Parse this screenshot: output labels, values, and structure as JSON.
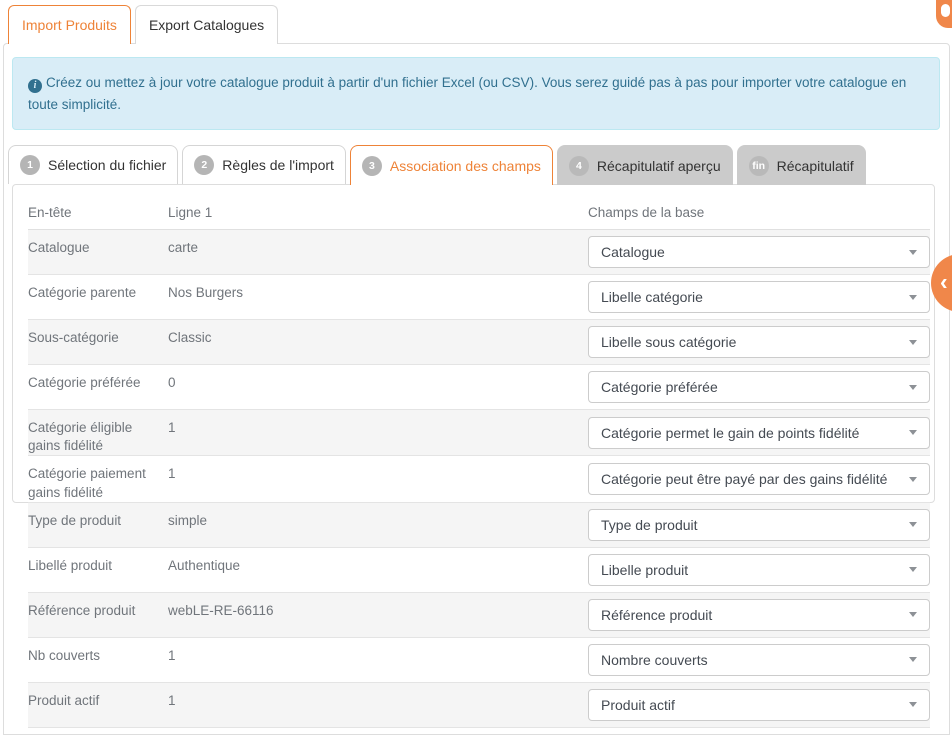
{
  "accent_color": "#ee8338",
  "top_tabs": [
    {
      "label": "Import Produits",
      "active": true
    },
    {
      "label": "Export Catalogues",
      "active": false
    }
  ],
  "alert": {
    "icon": "info-icon",
    "text": "Créez ou mettez à jour votre catalogue produit à partir d'un fichier Excel (ou CSV). Vous serez guidé pas à pas pour importer votre catalogue en toute simplicité."
  },
  "wizard_steps": [
    {
      "badge": "1",
      "label": "Sélection du fichier",
      "state": "default"
    },
    {
      "badge": "2",
      "label": "Règles de l'import",
      "state": "default"
    },
    {
      "badge": "3",
      "label": "Association des champs",
      "state": "active"
    },
    {
      "badge": "4",
      "label": "Récapitulatif aperçu",
      "state": "disabled"
    },
    {
      "badge": "fin",
      "label": "Récapitulatif",
      "state": "disabled"
    }
  ],
  "mapping_table": {
    "columns": [
      "En-tête",
      "Ligne 1",
      "Champs de la base"
    ],
    "rows": [
      {
        "header": "Catalogue",
        "line1": "carte",
        "field": "Catalogue"
      },
      {
        "header": "Catégorie parente",
        "line1": "Nos Burgers",
        "field": "Libelle catégorie"
      },
      {
        "header": "Sous-catégorie",
        "line1": "Classic",
        "field": "Libelle sous catégorie"
      },
      {
        "header": "Catégorie préférée",
        "line1": "0",
        "field": "Catégorie préférée"
      },
      {
        "header": "Catégorie éligible gains fidélité",
        "line1": "1",
        "field": "Catégorie permet le gain de points fidélité"
      },
      {
        "header": "Catégorie paiement gains fidélité",
        "line1": "1",
        "field": "Catégorie peut être payé par des gains fidélité"
      },
      {
        "header": "Type de produit",
        "line1": "simple",
        "field": "Type de produit"
      },
      {
        "header": "Libellé produit",
        "line1": "Authentique",
        "field": "Libelle produit"
      },
      {
        "header": "Référence produit",
        "line1": "webLE-RE-66116",
        "field": "Référence produit"
      },
      {
        "header": "Nb couverts",
        "line1": "1",
        "field": "Nombre couverts"
      },
      {
        "header": "Produit actif",
        "line1": "1",
        "field": "Produit actif"
      }
    ]
  },
  "floating": {
    "toggle_icon": "chevron-left-icon",
    "corner_badge_icon": "notification-badge-icon"
  }
}
